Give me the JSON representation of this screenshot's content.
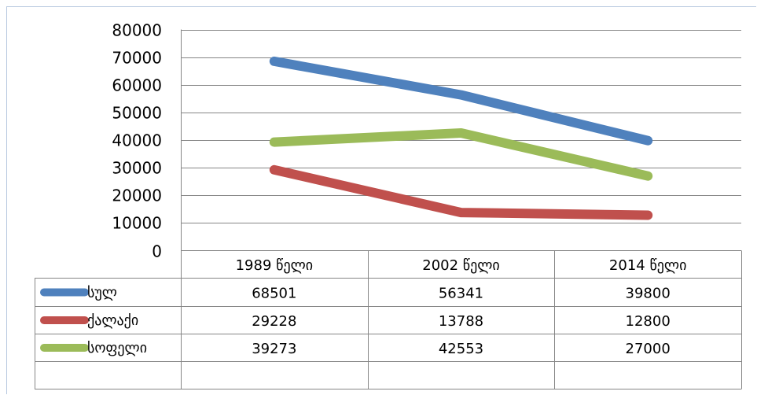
{
  "chart_data": {
    "type": "line",
    "title": "",
    "xlabel": "",
    "ylabel": "",
    "categories": [
      "1989 წელი",
      "2002 წელი",
      "2014 წელი"
    ],
    "ylim": [
      0,
      80000
    ],
    "yticks": [
      "0",
      "10000",
      "20000",
      "30000",
      "40000",
      "50000",
      "60000",
      "70000",
      "80000"
    ],
    "grid": true,
    "legend": "data-table",
    "series": [
      {
        "name": "სულ",
        "values": [
          68501,
          56341,
          39800
        ],
        "color": "#4f81bd"
      },
      {
        "name": "ქალაქი",
        "values": [
          29228,
          13788,
          12800
        ],
        "color": "#c0504d"
      },
      {
        "name": "სოფელი",
        "values": [
          39273,
          42553,
          27000
        ],
        "color": "#9bbb59"
      }
    ]
  }
}
